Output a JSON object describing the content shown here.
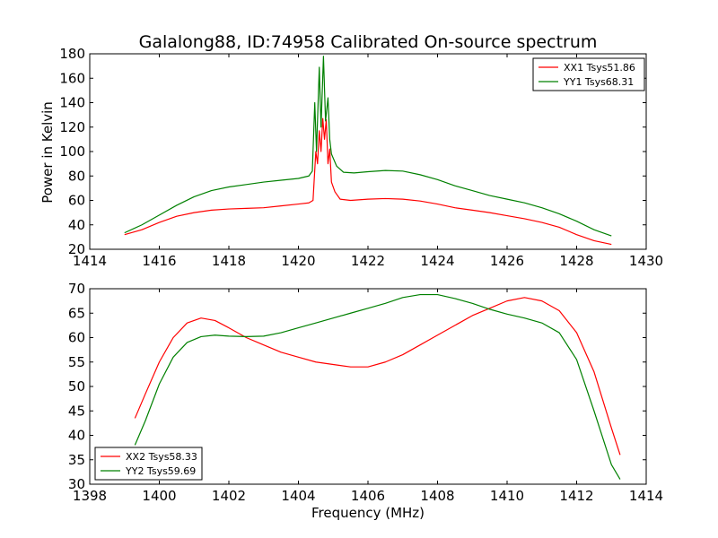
{
  "title": "Galalong88, ID:74958 Calibrated On-source spectrum",
  "chart_data": [
    {
      "type": "line",
      "xlim": [
        1414,
        1430
      ],
      "ylim": [
        20,
        180
      ],
      "xticks": [
        1414,
        1416,
        1418,
        1420,
        1422,
        1424,
        1426,
        1428,
        1430
      ],
      "yticks": [
        20,
        40,
        60,
        80,
        100,
        120,
        140,
        160,
        180
      ],
      "xlabel": "",
      "ylabel": "Power in Kelvin",
      "legend_position": "top-right",
      "grid": false,
      "series": [
        {
          "name": "XX1 Tsys51.86",
          "color": "#ff0000",
          "points": [
            [
              1415.0,
              32
            ],
            [
              1415.5,
              36
            ],
            [
              1416.0,
              42
            ],
            [
              1416.5,
              47
            ],
            [
              1417.0,
              50
            ],
            [
              1417.5,
              52
            ],
            [
              1418.0,
              53
            ],
            [
              1418.5,
              53.5
            ],
            [
              1419.0,
              54
            ],
            [
              1419.5,
              55.5
            ],
            [
              1420.0,
              57
            ],
            [
              1420.3,
              58
            ],
            [
              1420.42,
              60
            ],
            [
              1420.5,
              100
            ],
            [
              1420.55,
              90
            ],
            [
              1420.6,
              117
            ],
            [
              1420.65,
              100
            ],
            [
              1420.7,
              127
            ],
            [
              1420.75,
              110
            ],
            [
              1420.8,
              126
            ],
            [
              1420.85,
              90
            ],
            [
              1420.9,
              102
            ],
            [
              1420.95,
              75
            ],
            [
              1421.05,
              67
            ],
            [
              1421.2,
              61
            ],
            [
              1421.5,
              60
            ],
            [
              1422.0,
              61
            ],
            [
              1422.5,
              61.5
            ],
            [
              1423.0,
              61
            ],
            [
              1423.5,
              59.5
            ],
            [
              1424.0,
              57
            ],
            [
              1424.5,
              54
            ],
            [
              1425.0,
              52
            ],
            [
              1425.5,
              50
            ],
            [
              1426.0,
              47.5
            ],
            [
              1426.5,
              45
            ],
            [
              1427.0,
              42
            ],
            [
              1427.5,
              38
            ],
            [
              1428.0,
              32
            ],
            [
              1428.5,
              27
            ],
            [
              1429.0,
              24
            ]
          ]
        },
        {
          "name": "YY1 Tsys68.31",
          "color": "#008000",
          "points": [
            [
              1415.0,
              33.5
            ],
            [
              1415.5,
              40
            ],
            [
              1416.0,
              48
            ],
            [
              1416.5,
              56
            ],
            [
              1417.0,
              63
            ],
            [
              1417.5,
              68
            ],
            [
              1418.0,
              71
            ],
            [
              1418.5,
              73
            ],
            [
              1419.0,
              75
            ],
            [
              1419.5,
              76.5
            ],
            [
              1420.0,
              78
            ],
            [
              1420.3,
              80
            ],
            [
              1420.4,
              84
            ],
            [
              1420.47,
              140
            ],
            [
              1420.52,
              100
            ],
            [
              1420.6,
              169
            ],
            [
              1420.65,
              120
            ],
            [
              1420.72,
              178
            ],
            [
              1420.78,
              125
            ],
            [
              1420.85,
              144
            ],
            [
              1420.9,
              110
            ],
            [
              1420.95,
              98
            ],
            [
              1421.1,
              88
            ],
            [
              1421.3,
              83
            ],
            [
              1421.6,
              82.5
            ],
            [
              1422.0,
              83.5
            ],
            [
              1422.5,
              84.5
            ],
            [
              1423.0,
              84
            ],
            [
              1423.5,
              81
            ],
            [
              1424.0,
              77
            ],
            [
              1424.5,
              72
            ],
            [
              1425.0,
              68
            ],
            [
              1425.5,
              64
            ],
            [
              1426.0,
              61
            ],
            [
              1426.5,
              58
            ],
            [
              1427.0,
              54
            ],
            [
              1427.5,
              49
            ],
            [
              1428.0,
              43
            ],
            [
              1428.5,
              36
            ],
            [
              1429.0,
              31
            ]
          ]
        }
      ]
    },
    {
      "type": "line",
      "xlim": [
        1398,
        1414
      ],
      "ylim": [
        30,
        70
      ],
      "xticks": [
        1398,
        1400,
        1402,
        1404,
        1406,
        1408,
        1410,
        1412,
        1414
      ],
      "yticks": [
        30,
        35,
        40,
        45,
        50,
        55,
        60,
        65,
        70
      ],
      "xlabel": "Frequency (MHz)",
      "ylabel": "",
      "legend_position": "bottom-left",
      "grid": false,
      "series": [
        {
          "name": "XX2 Tsys58.33",
          "color": "#ff0000",
          "points": [
            [
              1399.3,
              43.5
            ],
            [
              1399.6,
              48.5
            ],
            [
              1400.0,
              55
            ],
            [
              1400.4,
              60
            ],
            [
              1400.8,
              63
            ],
            [
              1401.2,
              64
            ],
            [
              1401.6,
              63.5
            ],
            [
              1402.0,
              62
            ],
            [
              1402.5,
              60
            ],
            [
              1403.0,
              58.5
            ],
            [
              1403.5,
              57
            ],
            [
              1404.0,
              56
            ],
            [
              1404.5,
              55
            ],
            [
              1405.0,
              54.5
            ],
            [
              1405.5,
              54
            ],
            [
              1406.0,
              54
            ],
            [
              1406.5,
              55
            ],
            [
              1407.0,
              56.5
            ],
            [
              1407.5,
              58.5
            ],
            [
              1408.0,
              60.5
            ],
            [
              1408.5,
              62.5
            ],
            [
              1409.0,
              64.5
            ],
            [
              1409.5,
              66
            ],
            [
              1410.0,
              67.5
            ],
            [
              1410.5,
              68.2
            ],
            [
              1411.0,
              67.5
            ],
            [
              1411.5,
              65.5
            ],
            [
              1412.0,
              61
            ],
            [
              1412.5,
              53
            ],
            [
              1413.0,
              41.5
            ],
            [
              1413.25,
              36
            ]
          ]
        },
        {
          "name": "YY2 Tsys59.69",
          "color": "#008000",
          "points": [
            [
              1399.3,
              38
            ],
            [
              1399.6,
              43
            ],
            [
              1400.0,
              50.5
            ],
            [
              1400.4,
              56
            ],
            [
              1400.8,
              59
            ],
            [
              1401.2,
              60.2
            ],
            [
              1401.6,
              60.5
            ],
            [
              1402.0,
              60.3
            ],
            [
              1402.5,
              60.2
            ],
            [
              1403.0,
              60.3
            ],
            [
              1403.5,
              61
            ],
            [
              1404.0,
              62
            ],
            [
              1404.5,
              63
            ],
            [
              1405.0,
              64
            ],
            [
              1405.5,
              65
            ],
            [
              1406.0,
              66
            ],
            [
              1406.5,
              67
            ],
            [
              1407.0,
              68.2
            ],
            [
              1407.5,
              68.8
            ],
            [
              1408.0,
              68.8
            ],
            [
              1408.5,
              68
            ],
            [
              1409.0,
              67
            ],
            [
              1409.5,
              65.8
            ],
            [
              1410.0,
              64.8
            ],
            [
              1410.5,
              64
            ],
            [
              1411.0,
              63
            ],
            [
              1411.5,
              61
            ],
            [
              1412.0,
              55.5
            ],
            [
              1412.5,
              45
            ],
            [
              1413.0,
              34
            ],
            [
              1413.25,
              31
            ]
          ]
        }
      ]
    }
  ]
}
